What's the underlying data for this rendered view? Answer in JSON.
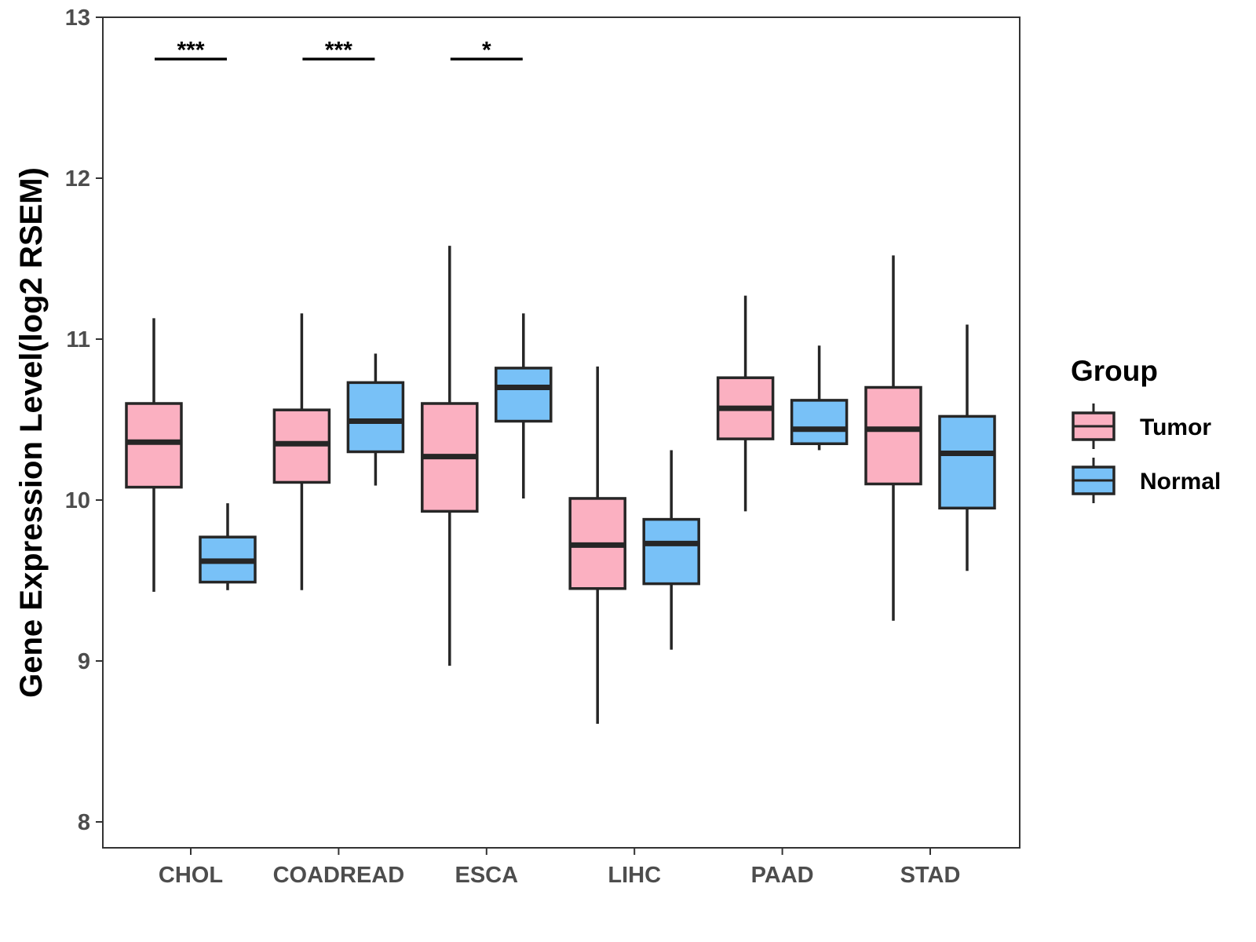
{
  "chart_data": {
    "type": "boxplot",
    "title": "",
    "xlabel": "",
    "ylabel": "Gene Expression Level(log2 RSEM)",
    "ylim": [
      7.84,
      13
    ],
    "yticks": [
      8,
      9,
      10,
      11,
      12,
      13
    ],
    "grid": false,
    "legend_position": "right",
    "legend_title": "Group",
    "categories": [
      "CHOL",
      "COADREAD",
      "ESCA",
      "LIHC",
      "PAAD",
      "STAD"
    ],
    "series": [
      {
        "name": "Tumor",
        "color": "#FBB0C1",
        "boxes": [
          {
            "whisker_low": 9.43,
            "q1": 10.08,
            "median": 10.36,
            "q3": 10.6,
            "whisker_high": 11.13
          },
          {
            "whisker_low": 9.44,
            "q1": 10.11,
            "median": 10.35,
            "q3": 10.56,
            "whisker_high": 11.16
          },
          {
            "whisker_low": 8.97,
            "q1": 9.93,
            "median": 10.27,
            "q3": 10.6,
            "whisker_high": 11.58
          },
          {
            "whisker_low": 8.61,
            "q1": 9.45,
            "median": 9.72,
            "q3": 10.01,
            "whisker_high": 10.83
          },
          {
            "whisker_low": 9.93,
            "q1": 10.38,
            "median": 10.57,
            "q3": 10.76,
            "whisker_high": 11.27
          },
          {
            "whisker_low": 9.25,
            "q1": 10.1,
            "median": 10.44,
            "q3": 10.7,
            "whisker_high": 11.52
          }
        ]
      },
      {
        "name": "Normal",
        "color": "#78C1F7",
        "boxes": [
          {
            "whisker_low": 9.44,
            "q1": 9.49,
            "median": 9.62,
            "q3": 9.77,
            "whisker_high": 9.98
          },
          {
            "whisker_low": 10.09,
            "q1": 10.3,
            "median": 10.49,
            "q3": 10.73,
            "whisker_high": 10.91
          },
          {
            "whisker_low": 10.01,
            "q1": 10.49,
            "median": 10.7,
            "q3": 10.82,
            "whisker_high": 11.16
          },
          {
            "whisker_low": 9.07,
            "q1": 9.48,
            "median": 9.73,
            "q3": 9.88,
            "whisker_high": 10.31
          },
          {
            "whisker_low": 10.31,
            "q1": 10.35,
            "median": 10.44,
            "q3": 10.62,
            "whisker_high": 10.96
          },
          {
            "whisker_low": 9.56,
            "q1": 9.95,
            "median": 10.29,
            "q3": 10.52,
            "whisker_high": 11.09
          }
        ]
      }
    ],
    "annotations": [
      {
        "category": "CHOL",
        "label": "***",
        "y": 12.74
      },
      {
        "category": "COADREAD",
        "label": "***",
        "y": 12.74
      },
      {
        "category": "ESCA",
        "label": "*",
        "y": 12.74
      }
    ]
  }
}
